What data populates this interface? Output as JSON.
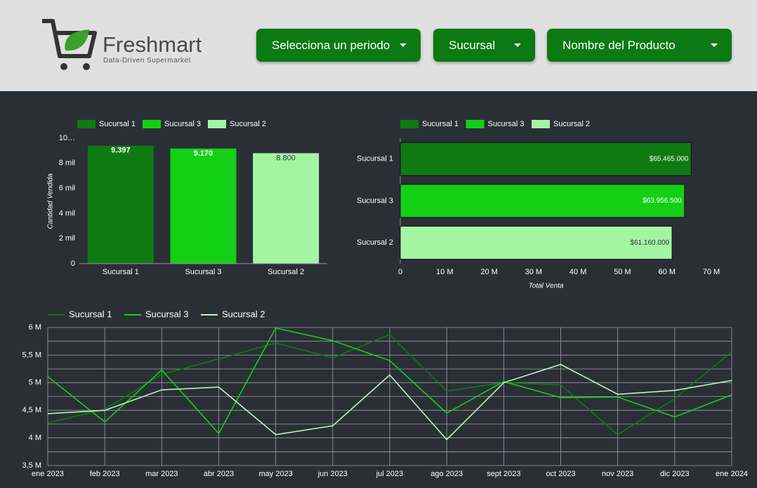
{
  "header": {
    "brand": "Freshmart",
    "tagline": "Data-Driven Supermarket"
  },
  "filters": [
    "Selecciona un periodo",
    "Sucursal",
    "Nombre del Producto"
  ],
  "chart_data": [
    {
      "type": "bar",
      "orientation": "vertical",
      "y_label": "Cantidad Vendida",
      "categories": [
        "Sucursal 1",
        "Sucursal 3",
        "Sucursal 2"
      ],
      "values": [
        9397,
        9170,
        8800
      ],
      "value_labels": [
        "9.397",
        "9.170",
        "8.800"
      ],
      "colors": [
        "#0f7a12",
        "#13d016",
        "#a3f5a3"
      ],
      "ylim": [
        0,
        10000
      ],
      "yticks": [
        0,
        {
          "value": 2000,
          "label": "2 mil"
        },
        {
          "value": 4000,
          "label": "4 mil"
        },
        {
          "value": 6000,
          "label": "6 mil"
        },
        {
          "value": 8000,
          "label": "8 mil"
        },
        {
          "value": 10000,
          "label": "10…"
        }
      ],
      "legend": "top-left"
    },
    {
      "type": "bar",
      "orientation": "horizontal",
      "x_label": "Total Venta",
      "categories": [
        "Sucursal 1",
        "Sucursal 3",
        "Sucursal 2"
      ],
      "values": [
        65465000,
        63956500,
        61160000
      ],
      "value_labels": [
        "$65.465.000",
        "$63.956.500",
        "$61.160.000"
      ],
      "colors": [
        "#0f7a12",
        "#13d016",
        "#a3f5a3"
      ],
      "xlim": [
        0,
        70000000
      ],
      "xticks": [
        0,
        {
          "value": 10000000,
          "label": "10 M"
        },
        {
          "value": 20000000,
          "label": "20 M"
        },
        {
          "value": 30000000,
          "label": "30 M"
        },
        {
          "value": 40000000,
          "label": "40 M"
        },
        {
          "value": 50000000,
          "label": "50 M"
        },
        {
          "value": 60000000,
          "label": "60 M"
        },
        {
          "value": 70000000,
          "label": "70 M"
        }
      ],
      "legend": "top-left"
    },
    {
      "type": "line",
      "categories": [
        "ene 2023",
        "feb 2023",
        "mar 2023",
        "abr 2023",
        "may 2023",
        "jun 2023",
        "jul 2023",
        "ago 2023",
        "sept 2023",
        "oct 2023",
        "nov 2023",
        "dic 2023",
        "ene 2024"
      ],
      "series": [
        {
          "name": "Sucursal 1",
          "color": "#0f7a12",
          "values": [
            4270000,
            4520000,
            5150000,
            5430000,
            5720000,
            5450000,
            5870000,
            4850000,
            5000000,
            4960000,
            4060000,
            4710000,
            5560000
          ]
        },
        {
          "name": "Sucursal 3",
          "color": "#13d016",
          "values": [
            5110000,
            4290000,
            5230000,
            4080000,
            5990000,
            5760000,
            5400000,
            4450000,
            5020000,
            4730000,
            4740000,
            4380000,
            4780000
          ]
        },
        {
          "name": "Sucursal 2",
          "color": "#b9f7b9",
          "values": [
            4440000,
            4500000,
            4870000,
            4920000,
            4060000,
            4220000,
            5140000,
            3970000,
            5000000,
            5330000,
            4790000,
            4860000,
            5040000
          ]
        }
      ],
      "ylim": [
        3500000,
        6000000
      ],
      "yticks": [
        {
          "value": 3500000,
          "label": "3,5 M"
        },
        {
          "value": 4000000,
          "label": "4 M"
        },
        {
          "value": 4500000,
          "label": "4,5 M"
        },
        {
          "value": 5000000,
          "label": "5 M"
        },
        {
          "value": 5500000,
          "label": "5,5 M"
        },
        {
          "value": 6000000,
          "label": "6 M"
        }
      ],
      "grid": true,
      "legend": "top-left"
    }
  ]
}
